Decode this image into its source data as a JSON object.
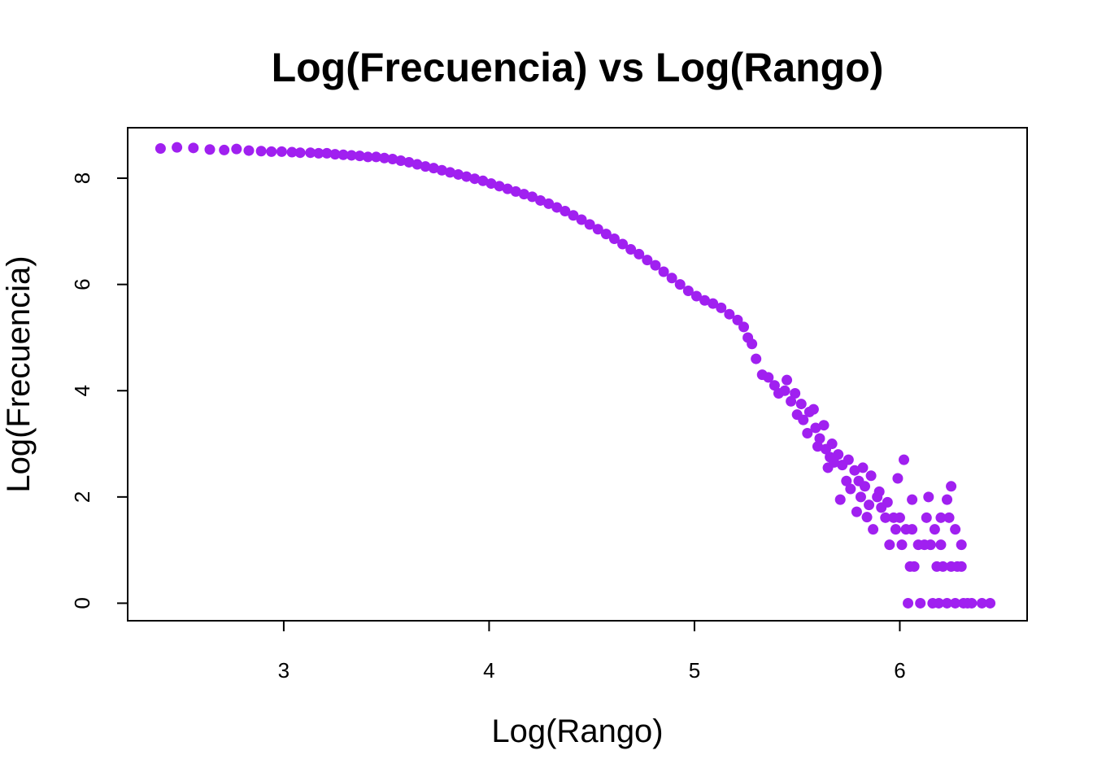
{
  "chart_data": {
    "type": "scatter",
    "title": "Log(Frecuencia) vs Log(Rango)",
    "xlabel": "Log(Rango)",
    "ylabel": "Log(Frecuencia)",
    "xlim": [
      2.24,
      6.62
    ],
    "ylim": [
      -0.33,
      8.95
    ],
    "x_ticks": [
      "3",
      "4",
      "5",
      "6"
    ],
    "y_ticks": [
      "0",
      "2",
      "4",
      "6",
      "8"
    ],
    "grid": false,
    "legend": "none",
    "point_color": "#A020F0",
    "points": [
      [
        2.4,
        8.56
      ],
      [
        2.48,
        8.58
      ],
      [
        2.56,
        8.57
      ],
      [
        2.64,
        8.54
      ],
      [
        2.71,
        8.53
      ],
      [
        2.77,
        8.55
      ],
      [
        2.83,
        8.52
      ],
      [
        2.89,
        8.51
      ],
      [
        2.94,
        8.5
      ],
      [
        2.99,
        8.5
      ],
      [
        3.04,
        8.49
      ],
      [
        3.08,
        8.48
      ],
      [
        3.13,
        8.48
      ],
      [
        3.17,
        8.47
      ],
      [
        3.21,
        8.47
      ],
      [
        3.25,
        8.45
      ],
      [
        3.29,
        8.44
      ],
      [
        3.33,
        8.43
      ],
      [
        3.37,
        8.42
      ],
      [
        3.41,
        8.4
      ],
      [
        3.45,
        8.4
      ],
      [
        3.49,
        8.38
      ],
      [
        3.53,
        8.36
      ],
      [
        3.57,
        8.33
      ],
      [
        3.61,
        8.3
      ],
      [
        3.65,
        8.26
      ],
      [
        3.69,
        8.22
      ],
      [
        3.73,
        8.19
      ],
      [
        3.77,
        8.15
      ],
      [
        3.81,
        8.11
      ],
      [
        3.85,
        8.07
      ],
      [
        3.89,
        8.03
      ],
      [
        3.93,
        7.99
      ],
      [
        3.97,
        7.95
      ],
      [
        4.01,
        7.9
      ],
      [
        4.05,
        7.85
      ],
      [
        4.09,
        7.8
      ],
      [
        4.13,
        7.75
      ],
      [
        4.17,
        7.7
      ],
      [
        4.21,
        7.65
      ],
      [
        4.25,
        7.58
      ],
      [
        4.29,
        7.52
      ],
      [
        4.33,
        7.45
      ],
      [
        4.37,
        7.38
      ],
      [
        4.41,
        7.3
      ],
      [
        4.45,
        7.22
      ],
      [
        4.49,
        7.13
      ],
      [
        4.53,
        7.04
      ],
      [
        4.57,
        6.95
      ],
      [
        4.61,
        6.86
      ],
      [
        4.65,
        6.76
      ],
      [
        4.69,
        6.66
      ],
      [
        4.73,
        6.57
      ],
      [
        4.77,
        6.46
      ],
      [
        4.81,
        6.36
      ],
      [
        4.85,
        6.24
      ],
      [
        4.89,
        6.12
      ],
      [
        4.93,
        6.0
      ],
      [
        4.97,
        5.88
      ],
      [
        5.01,
        5.78
      ],
      [
        5.05,
        5.7
      ],
      [
        5.09,
        5.64
      ],
      [
        5.13,
        5.56
      ],
      [
        5.17,
        5.44
      ],
      [
        5.21,
        5.33
      ],
      [
        5.24,
        5.2
      ],
      [
        5.26,
        5.0
      ],
      [
        5.28,
        4.88
      ],
      [
        5.3,
        4.6
      ],
      [
        5.33,
        4.3
      ],
      [
        5.36,
        4.25
      ],
      [
        5.39,
        4.1
      ],
      [
        5.41,
        3.95
      ],
      [
        5.44,
        4.0
      ],
      [
        5.47,
        3.8
      ],
      [
        5.5,
        3.55
      ],
      [
        5.53,
        3.45
      ],
      [
        5.56,
        3.6
      ],
      [
        5.59,
        3.3
      ],
      [
        5.61,
        3.1
      ],
      [
        5.64,
        2.9
      ],
      [
        5.67,
        3.0
      ],
      [
        5.7,
        2.8
      ],
      [
        5.72,
        2.6
      ],
      [
        5.75,
        2.7
      ],
      [
        5.78,
        2.5
      ],
      [
        5.8,
        2.3
      ],
      [
        5.83,
        2.2
      ],
      [
        5.86,
        2.4
      ],
      [
        5.89,
        2.0
      ],
      [
        5.91,
        1.8
      ],
      [
        5.94,
        1.9
      ],
      [
        5.97,
        1.61
      ],
      [
        6.0,
        1.61
      ],
      [
        6.03,
        1.39
      ],
      [
        6.06,
        1.39
      ],
      [
        6.09,
        1.1
      ],
      [
        6.12,
        1.1
      ],
      [
        6.15,
        1.1
      ],
      [
        6.18,
        0.69
      ],
      [
        6.21,
        0.69
      ],
      [
        6.25,
        0.69
      ],
      [
        6.3,
        0.69
      ],
      [
        6.35,
        0.0
      ],
      [
        6.4,
        0.0
      ],
      [
        6.44,
        0.0
      ],
      [
        5.52,
        3.75
      ],
      [
        5.58,
        3.65
      ],
      [
        5.63,
        3.35
      ],
      [
        5.68,
        2.65
      ],
      [
        5.71,
        1.95
      ],
      [
        5.79,
        1.72
      ],
      [
        5.84,
        1.62
      ],
      [
        5.87,
        1.39
      ],
      [
        5.95,
        1.1
      ],
      [
        6.02,
        2.7
      ],
      [
        6.07,
        0.69
      ],
      [
        6.1,
        0.0
      ],
      [
        6.14,
        2.0
      ],
      [
        6.2,
        1.61
      ],
      [
        6.23,
        1.95
      ],
      [
        6.25,
        2.2
      ],
      [
        6.27,
        1.39
      ],
      [
        6.3,
        1.1
      ],
      [
        6.04,
        0.0
      ],
      [
        6.16,
        0.0
      ],
      [
        6.19,
        0.0
      ],
      [
        6.23,
        0.0
      ],
      [
        6.27,
        0.0
      ],
      [
        6.31,
        0.0
      ],
      [
        5.65,
        2.55
      ],
      [
        5.74,
        2.3
      ],
      [
        5.82,
        2.55
      ],
      [
        5.9,
        2.1
      ],
      [
        5.99,
        2.35
      ],
      [
        6.06,
        1.95
      ],
      [
        6.13,
        1.61
      ],
      [
        6.17,
        1.39
      ],
      [
        6.2,
        1.1
      ],
      [
        6.24,
        1.61
      ],
      [
        6.28,
        0.69
      ],
      [
        6.33,
        0.0
      ],
      [
        5.45,
        4.2
      ],
      [
        5.49,
        3.95
      ],
      [
        5.55,
        3.2
      ],
      [
        5.6,
        2.95
      ],
      [
        5.66,
        2.75
      ],
      [
        5.76,
        2.15
      ],
      [
        5.81,
        2.0
      ],
      [
        5.85,
        1.85
      ],
      [
        5.93,
        1.61
      ],
      [
        5.98,
        1.39
      ],
      [
        6.01,
        1.1
      ],
      [
        6.05,
        0.69
      ]
    ]
  }
}
